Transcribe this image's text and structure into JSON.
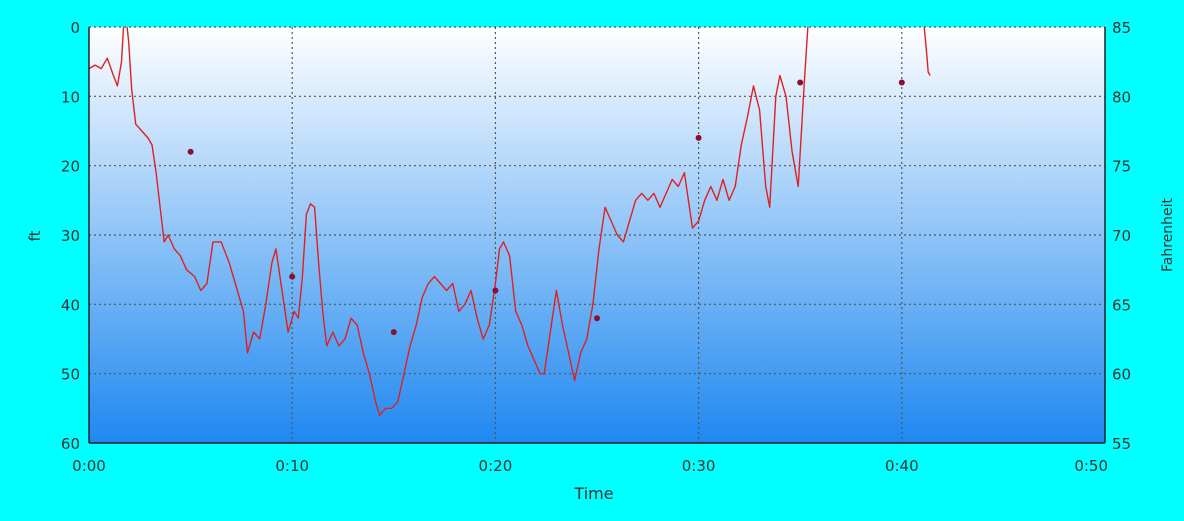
{
  "chart_data": {
    "type": "line",
    "xlabel": "Time",
    "ylabel": "ft",
    "y2label": "Fahrenheit",
    "xlim": [
      0,
      50
    ],
    "ylim": [
      60,
      0
    ],
    "y2lim": [
      55,
      85
    ],
    "x_ticks": [
      "0:00",
      "0:10",
      "0:20",
      "0:30",
      "0:40",
      "0:50"
    ],
    "y_ticks": [
      "0",
      "10",
      "20",
      "30",
      "40",
      "50",
      "60"
    ],
    "y2_ticks": [
      "85",
      "80",
      "75",
      "70",
      "65",
      "60",
      "55"
    ],
    "grid": true,
    "colors": {
      "background": "#00ffff",
      "plot_top": "#ffffff",
      "plot_bottom": "#1e88f0",
      "depth_line": "#e02020",
      "temp_point": "#8b1030",
      "grid": "#555555"
    },
    "series": [
      {
        "kind": "depth",
        "points": [
          [
            0,
            6
          ],
          [
            0.3,
            5.5
          ],
          [
            0.6,
            6
          ],
          [
            0.9,
            4.5
          ],
          [
            1.2,
            7
          ],
          [
            1.4,
            8.5
          ],
          [
            1.6,
            5
          ],
          [
            1.7,
            0
          ],
          [
            1.8,
            -2
          ],
          [
            1.95,
            2
          ],
          [
            2.1,
            9
          ],
          [
            2.3,
            14
          ],
          [
            2.6,
            15
          ],
          [
            2.9,
            16
          ],
          [
            3.1,
            17
          ],
          [
            3.3,
            21
          ],
          [
            3.5,
            26
          ],
          [
            3.7,
            31
          ],
          [
            3.9,
            30
          ],
          [
            4.2,
            32
          ],
          [
            4.5,
            33
          ],
          [
            4.8,
            35
          ],
          [
            5.2,
            36
          ],
          [
            5.5,
            38
          ],
          [
            5.8,
            37
          ],
          [
            6.1,
            31
          ],
          [
            6.5,
            31
          ],
          [
            6.9,
            34
          ],
          [
            7.2,
            37
          ],
          [
            7.6,
            41
          ],
          [
            7.8,
            47
          ],
          [
            8.1,
            44
          ],
          [
            8.4,
            45
          ],
          [
            8.7,
            40
          ],
          [
            9,
            34
          ],
          [
            9.2,
            32
          ],
          [
            9.5,
            38
          ],
          [
            9.8,
            44
          ],
          [
            10.1,
            41
          ],
          [
            10.3,
            42
          ],
          [
            10.5,
            36
          ],
          [
            10.7,
            27
          ],
          [
            10.9,
            25.5
          ],
          [
            11.1,
            26
          ],
          [
            11.3,
            34
          ],
          [
            11.5,
            41
          ],
          [
            11.7,
            46
          ],
          [
            12,
            44
          ],
          [
            12.3,
            46
          ],
          [
            12.6,
            45
          ],
          [
            12.9,
            42
          ],
          [
            13.2,
            43
          ],
          [
            13.5,
            47
          ],
          [
            13.8,
            50
          ],
          [
            14.1,
            54
          ],
          [
            14.3,
            56
          ],
          [
            14.6,
            55
          ],
          [
            14.9,
            55
          ],
          [
            15.2,
            54
          ],
          [
            15.5,
            50
          ],
          [
            15.8,
            46
          ],
          [
            16.1,
            43
          ],
          [
            16.4,
            39
          ],
          [
            16.7,
            37
          ],
          [
            17,
            36
          ],
          [
            17.3,
            37
          ],
          [
            17.6,
            38
          ],
          [
            17.9,
            37
          ],
          [
            18.2,
            41
          ],
          [
            18.5,
            40
          ],
          [
            18.8,
            38
          ],
          [
            19.1,
            42
          ],
          [
            19.4,
            45
          ],
          [
            19.7,
            43
          ],
          [
            20,
            37
          ],
          [
            20.2,
            32
          ],
          [
            20.4,
            31
          ],
          [
            20.7,
            33
          ],
          [
            21,
            41
          ],
          [
            21.3,
            43
          ],
          [
            21.6,
            46
          ],
          [
            21.9,
            48
          ],
          [
            22.2,
            50
          ],
          [
            22.4,
            50
          ],
          [
            22.7,
            44
          ],
          [
            23,
            38
          ],
          [
            23.3,
            43
          ],
          [
            23.6,
            47
          ],
          [
            23.9,
            51
          ],
          [
            24.2,
            47
          ],
          [
            24.5,
            45
          ],
          [
            24.8,
            40
          ],
          [
            25.1,
            32
          ],
          [
            25.4,
            26
          ],
          [
            25.7,
            28
          ],
          [
            26,
            30
          ],
          [
            26.3,
            31
          ],
          [
            26.6,
            28
          ],
          [
            26.9,
            25
          ],
          [
            27.2,
            24
          ],
          [
            27.5,
            25
          ],
          [
            27.8,
            24
          ],
          [
            28.1,
            26
          ],
          [
            28.4,
            24
          ],
          [
            28.7,
            22
          ],
          [
            29,
            23
          ],
          [
            29.3,
            21
          ],
          [
            29.5,
            25
          ],
          [
            29.7,
            29
          ],
          [
            30,
            28
          ],
          [
            30.3,
            25
          ],
          [
            30.6,
            23
          ],
          [
            30.9,
            25
          ],
          [
            31.2,
            22
          ],
          [
            31.5,
            25
          ],
          [
            31.8,
            23
          ],
          [
            32.1,
            17
          ],
          [
            32.4,
            13
          ],
          [
            32.7,
            8.5
          ],
          [
            33,
            12
          ],
          [
            33.3,
            23
          ],
          [
            33.5,
            26
          ],
          [
            33.8,
            10
          ],
          [
            34,
            7
          ],
          [
            34.3,
            10
          ],
          [
            34.6,
            18
          ],
          [
            34.9,
            23
          ],
          [
            35.2,
            8
          ],
          [
            35.4,
            -1
          ]
        ]
      },
      {
        "kind": "depth",
        "points": [
          [
            41.1,
            0
          ],
          [
            41.2,
            3
          ],
          [
            41.3,
            6.5
          ],
          [
            41.4,
            7
          ]
        ]
      },
      {
        "kind": "temperature",
        "points": [
          [
            5,
            76
          ],
          [
            10,
            67
          ],
          [
            15,
            63
          ],
          [
            20,
            66
          ],
          [
            25,
            64
          ],
          [
            30,
            77
          ],
          [
            35,
            81
          ],
          [
            40,
            81
          ]
        ]
      }
    ]
  }
}
